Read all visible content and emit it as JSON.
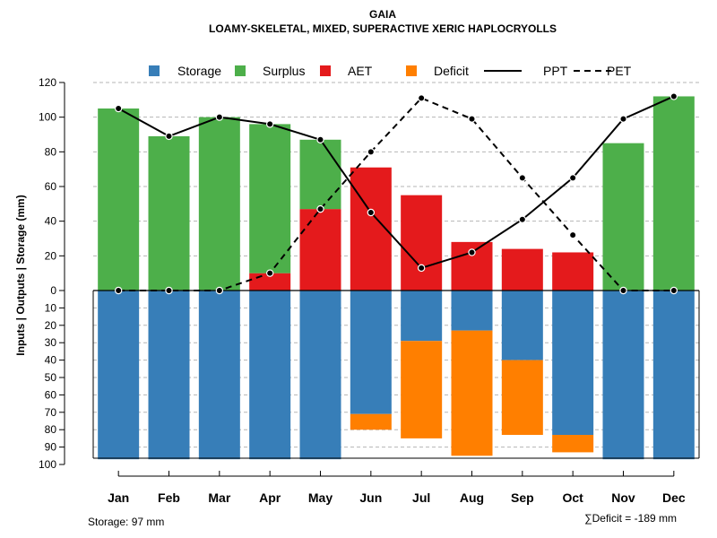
{
  "chart_data": {
    "type": "bar",
    "title": "GAIA",
    "subtitle": "LOAMY-SKELETAL, MIXED, SUPERACTIVE XERIC HAPLOCRYOLLS",
    "ylabel": "Inputs | Outputs | Storage    (mm)",
    "categories": [
      "Jan",
      "Feb",
      "Mar",
      "Apr",
      "May",
      "Jun",
      "Jul",
      "Aug",
      "Sep",
      "Oct",
      "Nov",
      "Dec"
    ],
    "upper_ylim": [
      0,
      120
    ],
    "upper_ticks": [
      "0",
      "20",
      "40",
      "60",
      "80",
      "100",
      "120"
    ],
    "lower_ylim": [
      0,
      100
    ],
    "lower_ticks": [
      "10",
      "20",
      "30",
      "40",
      "50",
      "60",
      "70",
      "80",
      "90",
      "100"
    ],
    "legend": [
      {
        "label": "Storage",
        "kind": "square",
        "color": "#377EB8"
      },
      {
        "label": "Surplus",
        "kind": "square",
        "color": "#4DAF4A"
      },
      {
        "label": "AET",
        "kind": "square",
        "color": "#E41A1C"
      },
      {
        "label": "Deficit",
        "kind": "square",
        "color": "#FF7F00"
      },
      {
        "label": "PPT",
        "kind": "solid-line",
        "color": "#000000"
      },
      {
        "label": "PET",
        "kind": "dashed-line",
        "color": "#000000"
      }
    ],
    "series": [
      {
        "name": "Storage",
        "values": [
          97,
          97,
          97,
          97,
          97,
          71,
          29,
          23,
          40,
          83,
          97,
          97
        ]
      },
      {
        "name": "Surplus",
        "values": [
          105,
          89,
          100,
          86,
          40,
          0,
          0,
          0,
          0,
          0,
          85,
          112
        ]
      },
      {
        "name": "AET",
        "values": [
          0,
          0,
          0,
          10,
          47,
          71,
          55,
          28,
          24,
          22,
          0,
          0
        ]
      },
      {
        "name": "Deficit",
        "values": [
          0,
          0,
          0,
          0,
          0,
          9,
          56,
          72,
          43,
          10,
          0,
          0
        ]
      },
      {
        "name": "PPT",
        "values": [
          105,
          89,
          100,
          96,
          87,
          45,
          13,
          22,
          41,
          65,
          99,
          112
        ]
      },
      {
        "name": "PET",
        "values": [
          0,
          0,
          0,
          10,
          47,
          80,
          111,
          99,
          65,
          32,
          0,
          0
        ]
      }
    ],
    "colors": {
      "storage": "#377EB8",
      "surplus": "#4DAF4A",
      "aet": "#E41A1C",
      "deficit": "#FF7F00"
    },
    "footer_left": "Storage: 97 mm",
    "footer_right": "∑Deficit = -189 mm"
  }
}
